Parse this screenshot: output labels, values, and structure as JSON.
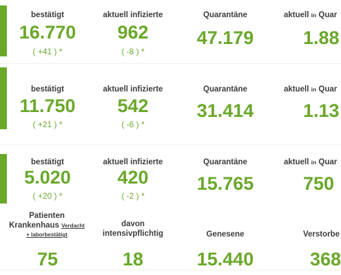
{
  "colors": {
    "accent": "#6aa82a",
    "label": "#3d3d3d"
  },
  "blocks": [
    {
      "label_confirmed": "bestätigt",
      "confirmed": "16.770",
      "confirmed_delta": "( +41 ) *",
      "label_active": "aktuell infizierte",
      "active": "962",
      "active_delta": "( -8 ) *",
      "label_quarantine": "Quarantäne",
      "quarantine": "47.179",
      "label_current_prefix": "aktuell",
      "label_current_in": "in",
      "label_current_suffix": "Quar",
      "current": "1.88"
    },
    {
      "label_confirmed": "bestätigt",
      "confirmed": "11.750",
      "confirmed_delta": "( +21 ) *",
      "label_active": "aktuell infizierte",
      "active": "542",
      "active_delta": "( -6 ) *",
      "label_quarantine": "Quarantäne",
      "quarantine": "31.414",
      "label_current_prefix": "aktuell",
      "label_current_in": "in",
      "label_current_suffix": "Quar",
      "current": "1.13"
    },
    {
      "label_confirmed": "bestätigt",
      "confirmed": "5.020",
      "confirmed_delta": "( +20 ) *",
      "label_active": "aktuell infizierte",
      "active": "420",
      "active_delta": "( -2 ) *",
      "label_quarantine": "Quarantäne",
      "quarantine": "15.765",
      "label_current_prefix": "aktuell",
      "label_current_in": "in",
      "label_current_suffix": "Quar",
      "current": "750"
    }
  ],
  "bottom": {
    "hospital_label_1": "Patienten",
    "hospital_label_2": "Krankenhaus",
    "hospital_label_suspected": "Verdacht",
    "hospital_label_confirmed": "+ laborbestätigt",
    "hospital": "75",
    "icu_label_1": "davon",
    "icu_label_2": "intensivpflichtig",
    "icu": "18",
    "recovered_label": "Genesene",
    "recovered": "15.440",
    "deceased_label": "Verstorbe",
    "deceased": "368"
  }
}
